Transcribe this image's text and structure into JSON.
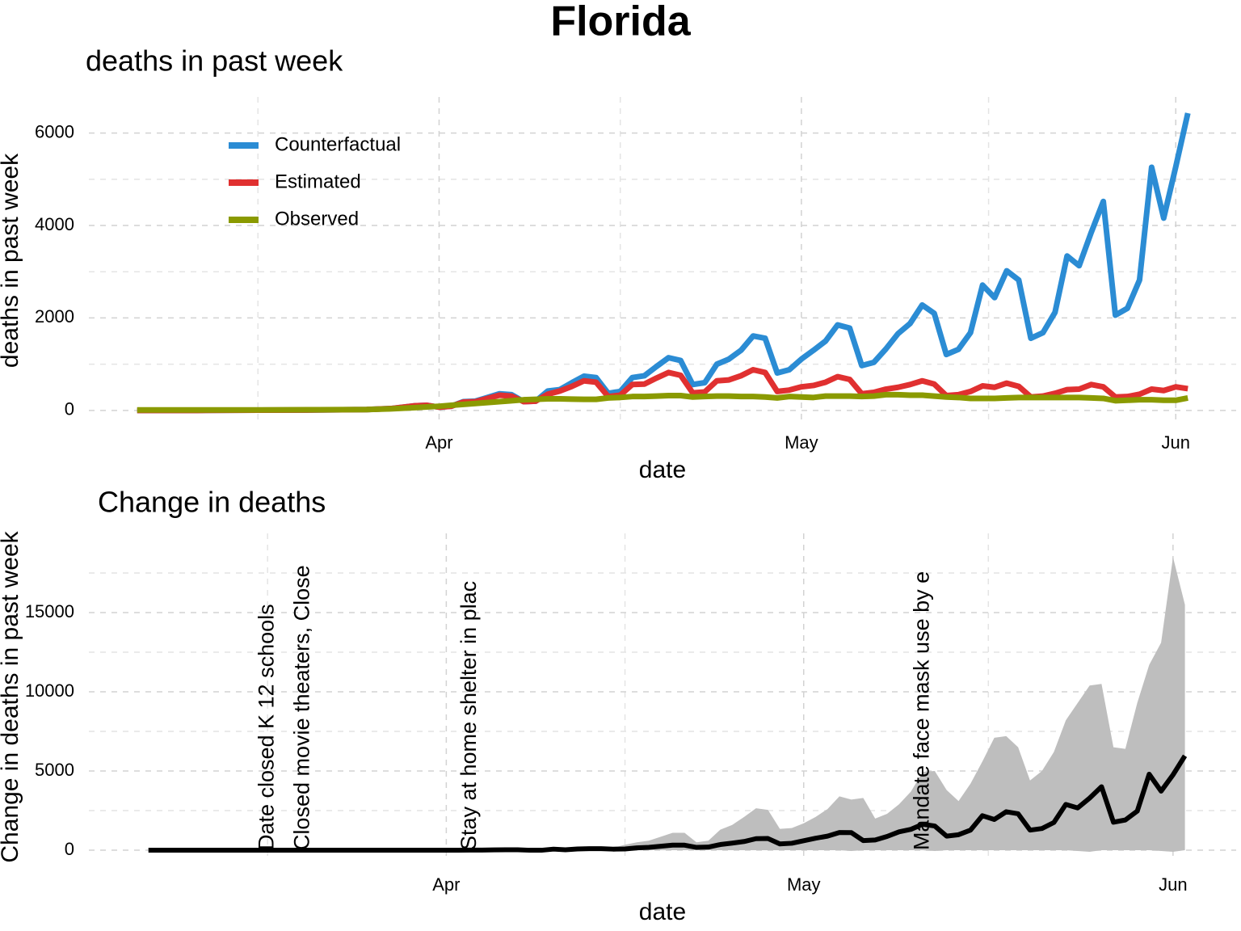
{
  "title": "Florida",
  "chart_data": [
    {
      "type": "line",
      "subtitle": "deaths in past week",
      "xlabel": "date",
      "ylabel": "deaths in past week",
      "x": [
        -25,
        -20,
        -15,
        -10,
        -6,
        -4,
        -2,
        -1,
        0,
        1,
        2,
        3,
        4,
        5,
        6,
        7,
        8,
        9,
        10,
        11,
        12,
        13,
        14,
        15,
        16,
        17,
        18,
        19,
        20,
        21,
        22,
        23,
        24,
        25,
        26,
        27,
        28,
        29,
        30,
        31,
        32,
        33,
        34,
        35,
        36,
        37,
        38,
        39,
        40,
        41,
        42,
        43,
        44,
        45,
        46,
        47,
        48,
        49,
        50,
        51,
        52,
        53,
        54,
        55,
        56,
        57,
        58,
        59,
        60,
        61,
        62
      ],
      "xlim": [
        -29,
        66
      ],
      "xticks": [
        {
          "value": 0,
          "label": "Apr"
        },
        {
          "value": 30,
          "label": "May"
        },
        {
          "value": 61,
          "label": "Jun"
        }
      ],
      "ylim": [
        -300,
        6780
      ],
      "yticks": [
        0,
        2000,
        4000,
        6000
      ],
      "grid": true,
      "legend": "top-left",
      "series": [
        {
          "name": "Counterfactual",
          "color": "#2b8cd4",
          "values": [
            0,
            0,
            5,
            10,
            20,
            40,
            100,
            110,
            70,
            90,
            190,
            200,
            280,
            360,
            340,
            190,
            200,
            420,
            450,
            600,
            740,
            710,
            370,
            410,
            710,
            750,
            950,
            1140,
            1080,
            560,
            600,
            1000,
            1110,
            1300,
            1610,
            1560,
            810,
            880,
            1110,
            1300,
            1500,
            1850,
            1780,
            970,
            1040,
            1330,
            1660,
            1880,
            2280,
            2100,
            1210,
            1320,
            1680,
            2710,
            2440,
            3020,
            2820,
            1560,
            1680,
            2120,
            3340,
            3130,
            3850,
            4520,
            2060,
            2210,
            2820,
            5260,
            4160,
            5270,
            6430
          ]
        },
        {
          "name": "Estimated",
          "color": "#e03030",
          "values": [
            0,
            0,
            5,
            10,
            20,
            40,
            100,
            110,
            70,
            90,
            180,
            190,
            260,
            330,
            310,
            190,
            200,
            350,
            420,
            520,
            640,
            610,
            300,
            330,
            560,
            570,
            700,
            820,
            760,
            380,
            400,
            640,
            660,
            750,
            880,
            820,
            410,
            440,
            510,
            540,
            610,
            730,
            670,
            360,
            390,
            460,
            500,
            560,
            640,
            570,
            320,
            340,
            410,
            530,
            500,
            590,
            520,
            290,
            310,
            370,
            450,
            460,
            560,
            510,
            290,
            300,
            350,
            460,
            430,
            510,
            470
          ]
        },
        {
          "name": "Observed",
          "color": "#8a9a00",
          "values": [
            10,
            10,
            10,
            15,
            20,
            35,
            60,
            75,
            90,
            110,
            130,
            150,
            170,
            190,
            210,
            230,
            240,
            250,
            250,
            245,
            240,
            240,
            270,
            280,
            300,
            300,
            310,
            320,
            320,
            290,
            300,
            310,
            310,
            300,
            300,
            290,
            270,
            300,
            290,
            280,
            310,
            310,
            310,
            300,
            310,
            340,
            340,
            330,
            330,
            310,
            290,
            280,
            260,
            260,
            260,
            270,
            280,
            280,
            280,
            280,
            280,
            280,
            270,
            260,
            210,
            220,
            230,
            230,
            220,
            220,
            270
          ]
        }
      ]
    },
    {
      "type": "line",
      "subtitle": "Change in deaths",
      "xlabel": "date",
      "ylabel": "Change in deaths in past week",
      "x": [
        -25,
        -20,
        -15,
        -10,
        -6,
        -4,
        -2,
        -1,
        0,
        1,
        2,
        3,
        4,
        5,
        6,
        7,
        8,
        9,
        10,
        11,
        12,
        13,
        14,
        15,
        16,
        17,
        18,
        19,
        20,
        21,
        22,
        23,
        24,
        25,
        26,
        27,
        28,
        29,
        30,
        31,
        32,
        33,
        34,
        35,
        36,
        37,
        38,
        39,
        40,
        41,
        42,
        43,
        44,
        45,
        46,
        47,
        48,
        49,
        50,
        51,
        52,
        53,
        54,
        55,
        56,
        57,
        58,
        59,
        60,
        61,
        62
      ],
      "xlim": [
        -30,
        66.3
      ],
      "xticks": [
        {
          "value": 0,
          "label": "Apr"
        },
        {
          "value": 30,
          "label": "May"
        },
        {
          "value": 61,
          "label": "Jun"
        }
      ],
      "ylim": [
        -660,
        20000
      ],
      "yticks": [
        0,
        5000,
        10000,
        15000
      ],
      "grid": true,
      "band": {
        "color": "#bebebe",
        "lower": [
          0,
          0,
          0,
          0,
          0,
          0,
          0,
          0,
          0,
          0,
          0,
          0,
          0,
          0,
          0,
          0,
          0,
          0,
          0,
          0,
          0,
          0,
          0,
          0,
          0,
          0,
          0,
          0,
          0,
          0,
          0,
          0,
          0,
          0,
          0,
          0,
          0,
          0,
          0,
          0,
          0,
          0,
          -50,
          0,
          0,
          0,
          0,
          0,
          0,
          -50,
          0,
          0,
          0,
          0,
          0,
          0,
          0,
          0,
          0,
          0,
          0,
          -50,
          -100,
          0,
          0,
          0,
          0,
          0,
          -50,
          -100,
          0
        ],
        "upper": [
          0,
          0,
          0,
          0,
          0,
          0,
          0,
          0,
          0,
          0,
          10,
          10,
          20,
          30,
          30,
          0,
          0,
          100,
          80,
          150,
          200,
          200,
          150,
          350,
          500,
          600,
          850,
          1100,
          1100,
          500,
          600,
          1300,
          1600,
          2100,
          2650,
          2550,
          1350,
          1400,
          1700,
          2100,
          2600,
          3400,
          3200,
          3300,
          2000,
          2300,
          2900,
          3700,
          4950,
          5000,
          3800,
          3100,
          4200,
          5600,
          7100,
          7200,
          6500,
          4400,
          5000,
          6200,
          8200,
          9300,
          10400,
          10500,
          6500,
          6400,
          9300,
          11700,
          13100,
          18500,
          15500
        ]
      },
      "series": [
        {
          "color": "#000000",
          "values": [
            0,
            0,
            0,
            0,
            0,
            0,
            0,
            0,
            0,
            0,
            10,
            10,
            20,
            30,
            30,
            0,
            0,
            70,
            30,
            80,
            100,
            100,
            70,
            80,
            150,
            180,
            250,
            320,
            320,
            180,
            200,
            360,
            450,
            550,
            730,
            740,
            400,
            440,
            600,
            760,
            890,
            1120,
            1110,
            610,
            650,
            870,
            1160,
            1320,
            1640,
            1530,
            890,
            980,
            1270,
            2180,
            1940,
            2430,
            2300,
            1270,
            1370,
            1750,
            2890,
            2670,
            3290,
            4010,
            1770,
            1910,
            2470,
            4800,
            3730,
            4760,
            5960
          ]
        }
      ],
      "annotations": [
        {
          "x": -15,
          "text": "Date closed K 12 schools"
        },
        {
          "x": -12,
          "text": "Closed movie theaters, Close"
        },
        {
          "x": 2,
          "text": "Stay at home  shelter in plac"
        },
        {
          "x": 40,
          "text": "Mandate face mask use by e"
        }
      ]
    }
  ]
}
